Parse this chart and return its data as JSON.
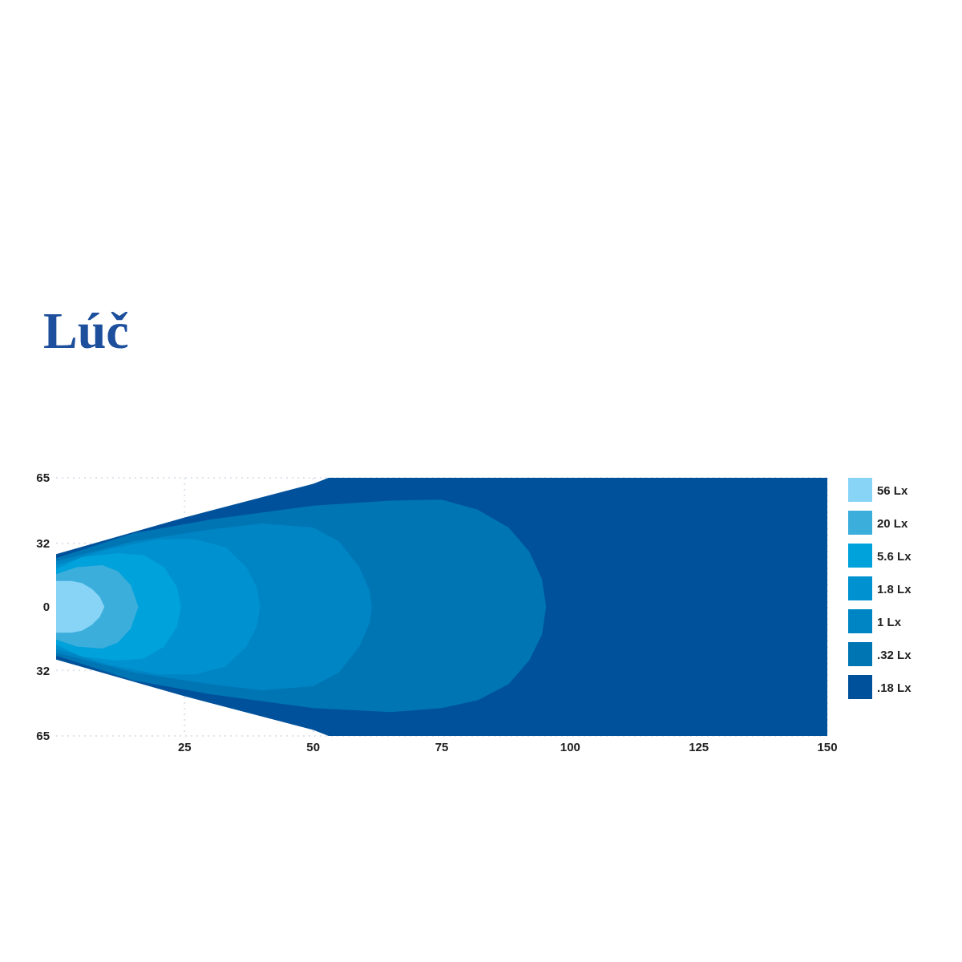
{
  "chart_data": {
    "type": "area",
    "title": "Lúč",
    "xlim": [
      0,
      150
    ],
    "xticks": [
      25,
      50,
      75,
      100,
      125,
      150
    ],
    "ylim": [
      -65,
      65
    ],
    "yticks": [
      {
        "value": 65,
        "label": "65"
      },
      32,
      0,
      {
        "value": -32,
        "label": "32"
      },
      {
        "value": -65,
        "label": "65"
      }
    ],
    "grid": true,
    "legend": "right",
    "series": [
      {
        "name": "56 Lx",
        "color": "#87d4f6",
        "x": [
          0,
          3,
          5,
          7,
          8.5,
          9.4
        ],
        "values": [
          13,
          13,
          12,
          9,
          5,
          0
        ]
      },
      {
        "color": "#87d4f6",
        "x": [
          0,
          3,
          5,
          7,
          8.5,
          9.4
        ],
        "values": [
          -13,
          -13,
          -12,
          -9,
          -5,
          0
        ]
      },
      {
        "name": "20 Lx",
        "color": "#3caedb",
        "x": [
          0,
          4,
          9,
          12,
          14.5,
          16
        ],
        "values": [
          16.5,
          20,
          21,
          18,
          11,
          0
        ]
      },
      {
        "color": "#3caedb",
        "x": [
          0,
          4,
          9,
          12,
          14.5,
          16
        ],
        "values": [
          -16.5,
          -20,
          -21,
          -18,
          -11,
          0
        ]
      },
      {
        "name": "5.6 Lx",
        "color": "#00a2dc",
        "x": [
          0,
          5,
          12,
          17,
          21,
          23.5,
          24.3
        ],
        "values": [
          19,
          25,
          27,
          26,
          20,
          10,
          0
        ]
      },
      {
        "color": "#00a2dc",
        "x": [
          0,
          5,
          12,
          17,
          21,
          23.5,
          24.3
        ],
        "values": [
          -19,
          -25,
          -27,
          -26,
          -20,
          -10,
          0
        ]
      },
      {
        "name": "1.8 Lx",
        "color": "#0092d0",
        "x": [
          0,
          10,
          20,
          27,
          33,
          37,
          39,
          39.7
        ],
        "values": [
          21,
          29,
          34,
          34,
          30,
          20,
          10,
          0
        ]
      },
      {
        "color": "#0092d0",
        "x": [
          0,
          10,
          20,
          27,
          33,
          37,
          39,
          39.7
        ],
        "values": [
          -21,
          -29,
          -34,
          -34,
          -30,
          -20,
          -10,
          0
        ]
      },
      {
        "name": "1 Lx",
        "color": "#0085c4",
        "x": [
          0,
          15,
          30,
          40,
          50,
          55,
          59,
          61,
          61.4
        ],
        "values": [
          23,
          33,
          39,
          42,
          40,
          33,
          20,
          8,
          0
        ]
      },
      {
        "color": "#0085c4",
        "x": [
          0,
          15,
          30,
          40,
          50,
          55,
          59,
          61,
          61.4
        ],
        "values": [
          -23,
          -33,
          -39,
          -42,
          -40,
          -33,
          -20,
          -8,
          0
        ]
      },
      {
        "name": ".32 Lx",
        "color": "#0075b4",
        "x": [
          0,
          15,
          30,
          50,
          65,
          75,
          82,
          88,
          92,
          94.5,
          95.3
        ],
        "values": [
          24.5,
          37,
          44,
          51,
          53.5,
          54,
          49,
          40,
          28,
          14,
          0
        ]
      },
      {
        "color": "#0075b4",
        "x": [
          0,
          15,
          30,
          50,
          65,
          75,
          82,
          88,
          92,
          94.5,
          95.3
        ],
        "values": [
          -24.5,
          -37,
          -44,
          -51,
          -53,
          -51,
          -47,
          -39,
          -27,
          -14,
          0
        ]
      },
      {
        "name": ".18 Lx",
        "color": "#00519b",
        "x": [
          0,
          25,
          50,
          53,
          150
        ],
        "values": [
          26.5,
          45,
          62,
          65,
          65
        ]
      },
      {
        "color": "#00519b",
        "x": [
          0,
          25,
          50,
          53,
          150
        ],
        "values": [
          -26.5,
          -45,
          -62,
          -65,
          -65
        ]
      }
    ]
  }
}
